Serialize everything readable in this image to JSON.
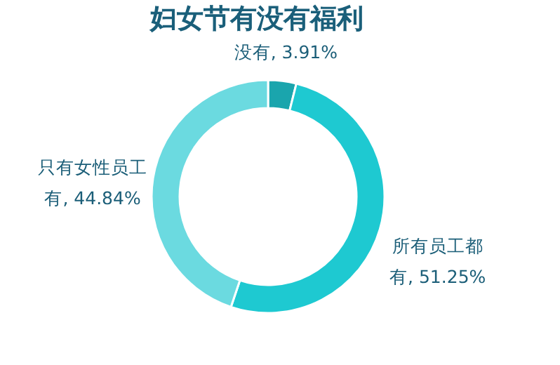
{
  "chart_data": {
    "type": "donut",
    "title": "妇女节有没有福利",
    "categories": [
      "没有",
      "所有员工都有",
      "只有女性员工有"
    ],
    "values": [
      3.91,
      51.25,
      44.84
    ],
    "value_labels": [
      "3.91%",
      "51.25%",
      "44.84%"
    ],
    "colors": [
      "#1aa5ad",
      "#1ec9d1",
      "#6bdae0"
    ],
    "legend": false
  }
}
